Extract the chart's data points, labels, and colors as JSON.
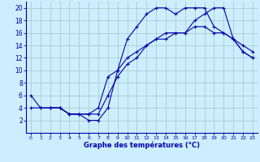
{
  "title": "Graphe des températures (°C)",
  "background_color": "#cceeff",
  "grid_color": "#aacccc",
  "line_color": "#0000aa",
  "xlim": [
    -0.5,
    23.5
  ],
  "ylim": [
    0,
    21
  ],
  "xticks": [
    0,
    1,
    2,
    3,
    4,
    5,
    6,
    7,
    8,
    9,
    10,
    11,
    12,
    13,
    14,
    15,
    16,
    17,
    18,
    19,
    20,
    21,
    22,
    23
  ],
  "yticks": [
    2,
    4,
    6,
    8,
    10,
    12,
    14,
    16,
    18,
    20
  ],
  "series1_x": [
    0,
    1,
    2,
    3,
    4,
    5,
    6,
    7,
    8,
    9,
    10,
    11,
    12,
    13,
    14,
    15,
    16,
    17,
    18,
    19,
    20,
    21,
    22,
    23
  ],
  "series1_y": [
    6,
    4,
    4,
    4,
    3,
    3,
    2,
    2,
    4,
    10,
    15,
    17,
    19,
    20,
    20,
    19,
    20,
    20,
    20,
    17,
    16,
    15,
    13,
    12
  ],
  "series2_x": [
    0,
    1,
    2,
    3,
    4,
    5,
    6,
    7,
    8,
    9,
    10,
    11,
    12,
    13,
    14,
    15,
    16,
    17,
    18,
    19,
    20,
    21,
    22,
    23
  ],
  "series2_y": [
    4,
    4,
    4,
    4,
    3,
    3,
    3,
    4,
    9,
    10,
    12,
    13,
    14,
    15,
    15,
    16,
    16,
    17,
    17,
    16,
    16,
    15,
    13,
    12
  ],
  "series3_x": [
    2,
    3,
    4,
    5,
    6,
    7,
    8,
    9,
    10,
    11,
    12,
    13,
    14,
    15,
    16,
    17,
    18,
    19,
    20,
    21,
    22,
    23
  ],
  "series3_y": [
    4,
    4,
    3,
    3,
    3,
    3,
    6,
    9,
    11,
    12,
    14,
    15,
    16,
    16,
    16,
    18,
    19,
    20,
    20,
    15,
    14,
    13
  ]
}
